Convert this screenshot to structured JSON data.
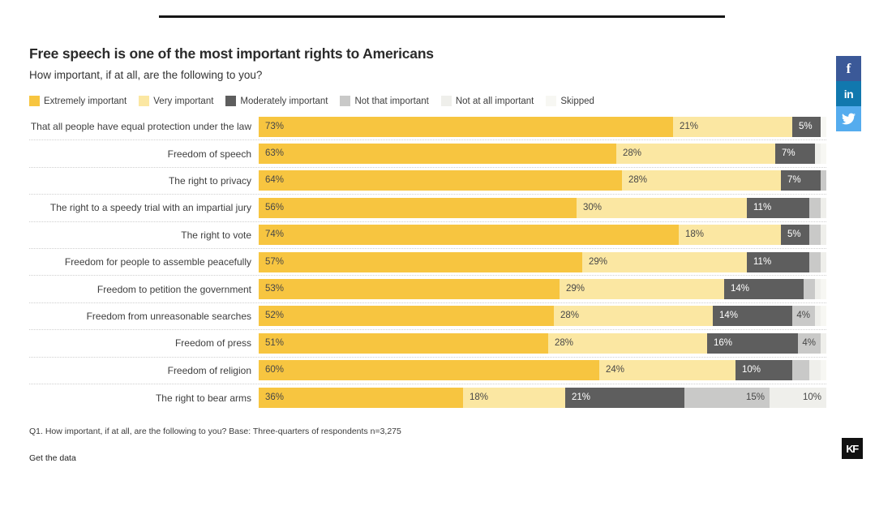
{
  "header": {
    "title": "Free speech is one of the most important rights to Americans",
    "subtitle": "How important, if at all, are the following to you?"
  },
  "legend": [
    {
      "label": "Extremely important",
      "color": "#F7C540"
    },
    {
      "label": "Very important",
      "color": "#FBE7A2"
    },
    {
      "label": "Moderately important",
      "color": "#5E5E5E"
    },
    {
      "label": "Not that important",
      "color": "#C9C9C8"
    },
    {
      "label": "Not at all important",
      "color": "#EFEFEB"
    },
    {
      "label": "Skipped",
      "color": "#F7F7F3"
    }
  ],
  "chart_data": {
    "type": "bar",
    "stacked": true,
    "orientation": "horizontal",
    "xlim": [
      0,
      100
    ],
    "series_keys": [
      "Extremely important",
      "Very important",
      "Moderately important",
      "Not that important",
      "Not at all important",
      "Skipped"
    ],
    "colors": [
      "#F7C540",
      "#FBE7A2",
      "#5E5E5E",
      "#C9C9C8",
      "#EFEFEB",
      "#F7F7F3"
    ],
    "rows": [
      {
        "category": "That all people have equal protection under the law",
        "values": [
          73,
          21,
          5,
          0,
          0,
          1
        ],
        "labels": [
          "73%",
          "21%",
          "5%",
          "",
          "",
          ""
        ]
      },
      {
        "category": "Freedom of speech",
        "values": [
          63,
          28,
          7,
          0,
          1,
          1
        ],
        "labels": [
          "63%",
          "28%",
          "7%",
          "",
          "",
          ""
        ]
      },
      {
        "category": "The right to privacy",
        "values": [
          64,
          28,
          7,
          1,
          0,
          0
        ],
        "labels": [
          "64%",
          "28%",
          "7%",
          "",
          "",
          ""
        ]
      },
      {
        "category": "The right to a speedy trial with an impartial jury",
        "values": [
          56,
          30,
          11,
          2,
          1,
          0
        ],
        "labels": [
          "56%",
          "30%",
          "11%",
          "",
          "",
          ""
        ]
      },
      {
        "category": "The right to vote",
        "values": [
          74,
          18,
          5,
          2,
          1,
          0
        ],
        "labels": [
          "74%",
          "18%",
          "5%",
          "",
          "",
          ""
        ]
      },
      {
        "category": "Freedom for people to assemble peacefully",
        "values": [
          57,
          29,
          11,
          2,
          1,
          0
        ],
        "labels": [
          "57%",
          "29%",
          "11%",
          "",
          "",
          ""
        ]
      },
      {
        "category": "Freedom to petition the government",
        "values": [
          53,
          29,
          14,
          2,
          1,
          1
        ],
        "labels": [
          "53%",
          "29%",
          "14%",
          "",
          "",
          ""
        ]
      },
      {
        "category": "Freedom from unreasonable searches",
        "values": [
          52,
          28,
          14,
          4,
          1,
          1
        ],
        "labels": [
          "52%",
          "28%",
          "14%",
          "4%",
          "",
          ""
        ]
      },
      {
        "category": "Freedom of press",
        "values": [
          51,
          28,
          16,
          4,
          1,
          0
        ],
        "labels": [
          "51%",
          "28%",
          "16%",
          "4%",
          "",
          ""
        ]
      },
      {
        "category": "Freedom of religion",
        "values": [
          60,
          24,
          10,
          3,
          2,
          1
        ],
        "labels": [
          "60%",
          "24%",
          "10%",
          "",
          "",
          ""
        ]
      },
      {
        "category": "The right to bear arms",
        "values": [
          36,
          18,
          21,
          15,
          10,
          0
        ],
        "labels": [
          "36%",
          "18%",
          "21%",
          "15%",
          "10%",
          ""
        ]
      }
    ]
  },
  "footer": {
    "note": "Q1. How important, if at all, are the following to you? Base: Three-quarters of respondents n=3,275",
    "link": "Get the data"
  },
  "social": [
    {
      "name": "facebook",
      "color": "#3B5998"
    },
    {
      "name": "linkedin",
      "color": "#1178AE"
    },
    {
      "name": "twitter",
      "color": "#55ACEE"
    }
  ],
  "logo": {
    "text": "KF",
    "color": "#111111"
  }
}
